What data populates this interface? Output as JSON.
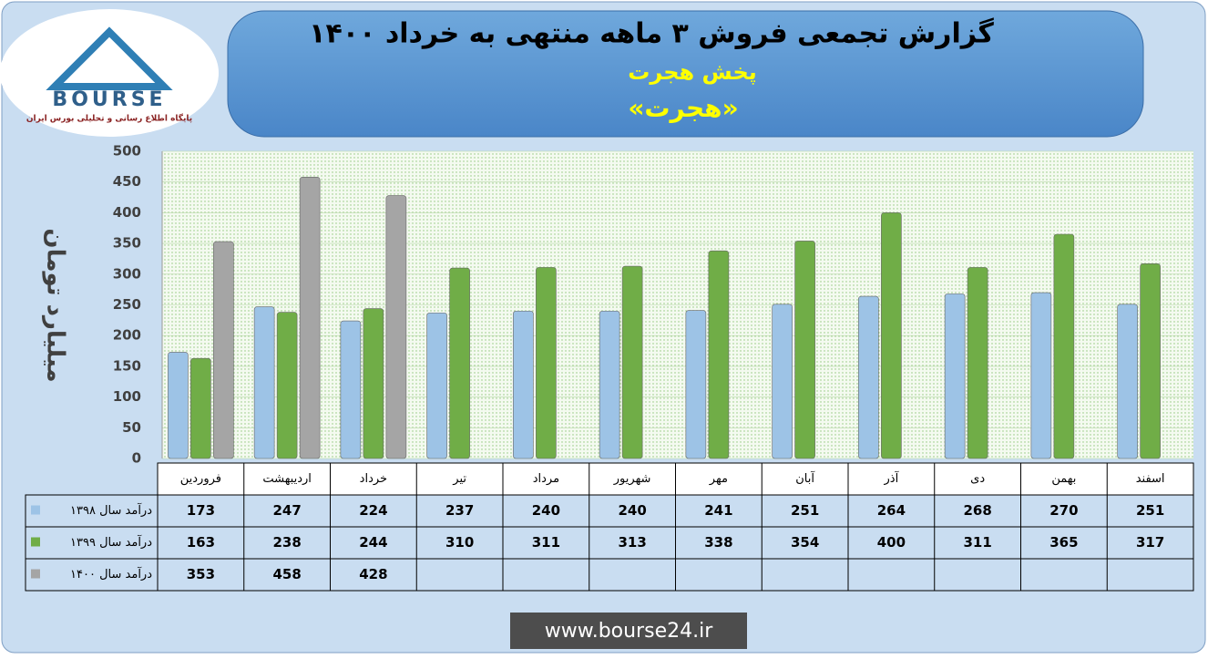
{
  "logo": {
    "text": "BOURSE",
    "tagline": "پایگاه اطلاع رسانی و تحلیلی بورس ایران"
  },
  "footer": {
    "url": "www.bourse24.ir"
  },
  "chart_data": {
    "type": "bar",
    "title": "گزارش تجمعی فروش ۳ ماهه منتهی به خرداد ۱۴۰۰",
    "subtitle": "پخش هجرت",
    "company": "«هجرت»",
    "y_label": "میلیارد تومان",
    "categories": [
      "فروردین",
      "اردیبهشت",
      "خرداد",
      "تیر",
      "مرداد",
      "شهریور",
      "مهر",
      "آبان",
      "آذر",
      "دی",
      "بهمن",
      "اسفند"
    ],
    "series": [
      {
        "name": "درآمد سال ۱۳۹۸",
        "color": "#9dc3e6",
        "values": [
          173,
          247,
          224,
          237,
          240,
          240,
          241,
          251,
          264,
          268,
          270,
          251
        ]
      },
      {
        "name": "درآمد سال ۱۳۹۹",
        "color": "#70ad47",
        "values": [
          163,
          238,
          244,
          310,
          311,
          313,
          338,
          354,
          400,
          311,
          365,
          317
        ]
      },
      {
        "name": "درآمد سال ۱۴۰۰",
        "color": "#a5a5a5",
        "values": [
          353,
          458,
          428,
          null,
          null,
          null,
          null,
          null,
          null,
          null,
          null,
          null
        ]
      }
    ],
    "ylim": [
      0,
      500
    ],
    "yticks": [
      0,
      50,
      100,
      150,
      200,
      250,
      300,
      350,
      400,
      450,
      500
    ],
    "grid": true
  }
}
